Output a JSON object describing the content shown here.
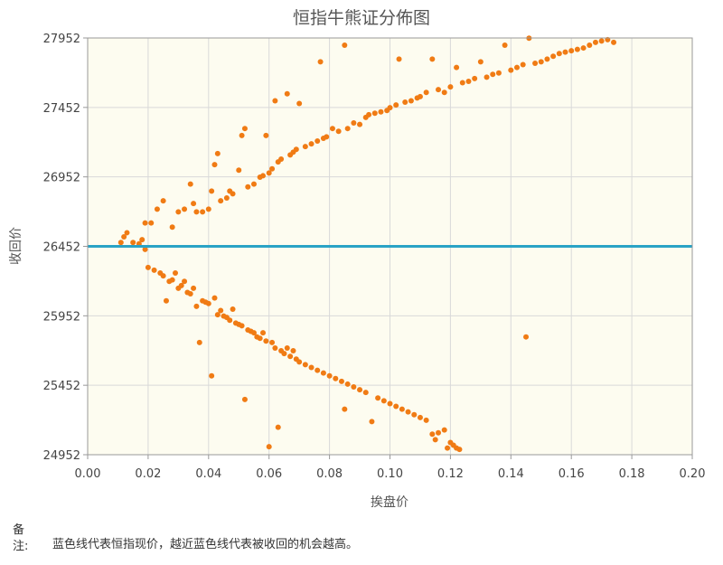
{
  "chart_data": {
    "type": "scatter",
    "title": "恒指牛熊证分佈图",
    "xlabel": "挨盘价",
    "ylabel": "收回价",
    "xlim": [
      0.0,
      0.2
    ],
    "ylim": [
      24952,
      27952
    ],
    "x_ticks": [
      "0.00",
      "0.02",
      "0.04",
      "0.06",
      "0.08",
      "0.10",
      "0.12",
      "0.14",
      "0.16",
      "0.18",
      "0.20"
    ],
    "y_ticks": [
      "24952",
      "25452",
      "25952",
      "26452",
      "26952",
      "27452",
      "27952"
    ],
    "grid": true,
    "reference_line": {
      "y": 26452,
      "color": "#2aa3c6"
    },
    "point_color": "#f07b14",
    "series": [
      {
        "values": [
          [
            0.011,
            26480
          ],
          [
            0.012,
            26520
          ],
          [
            0.013,
            26550
          ],
          [
            0.015,
            26480
          ],
          [
            0.017,
            26470
          ],
          [
            0.018,
            26500
          ],
          [
            0.019,
            26620
          ],
          [
            0.021,
            26620
          ],
          [
            0.023,
            26720
          ],
          [
            0.025,
            26780
          ],
          [
            0.028,
            26590
          ],
          [
            0.03,
            26700
          ],
          [
            0.032,
            26720
          ],
          [
            0.034,
            26900
          ],
          [
            0.035,
            26760
          ],
          [
            0.036,
            26700
          ],
          [
            0.038,
            26700
          ],
          [
            0.04,
            26720
          ],
          [
            0.041,
            26850
          ],
          [
            0.042,
            27040
          ],
          [
            0.043,
            27120
          ],
          [
            0.044,
            26780
          ],
          [
            0.046,
            26800
          ],
          [
            0.047,
            26850
          ],
          [
            0.048,
            26830
          ],
          [
            0.05,
            27000
          ],
          [
            0.051,
            27250
          ],
          [
            0.052,
            27300
          ],
          [
            0.053,
            26880
          ],
          [
            0.055,
            26900
          ],
          [
            0.057,
            26950
          ],
          [
            0.058,
            26960
          ],
          [
            0.059,
            27250
          ],
          [
            0.06,
            26980
          ],
          [
            0.061,
            27010
          ],
          [
            0.062,
            27500
          ],
          [
            0.063,
            27060
          ],
          [
            0.064,
            27080
          ],
          [
            0.066,
            27550
          ],
          [
            0.067,
            27110
          ],
          [
            0.068,
            27130
          ],
          [
            0.069,
            27150
          ],
          [
            0.07,
            27480
          ],
          [
            0.072,
            27170
          ],
          [
            0.074,
            27190
          ],
          [
            0.076,
            27210
          ],
          [
            0.077,
            27780
          ],
          [
            0.078,
            27230
          ],
          [
            0.079,
            27240
          ],
          [
            0.081,
            27300
          ],
          [
            0.083,
            27280
          ],
          [
            0.085,
            27900
          ],
          [
            0.086,
            27300
          ],
          [
            0.088,
            27340
          ],
          [
            0.09,
            27330
          ],
          [
            0.092,
            27380
          ],
          [
            0.093,
            27400
          ],
          [
            0.095,
            27410
          ],
          [
            0.097,
            27420
          ],
          [
            0.099,
            27430
          ],
          [
            0.1,
            27450
          ],
          [
            0.102,
            27470
          ],
          [
            0.103,
            27800
          ],
          [
            0.105,
            27490
          ],
          [
            0.107,
            27500
          ],
          [
            0.109,
            27520
          ],
          [
            0.11,
            27530
          ],
          [
            0.112,
            27560
          ],
          [
            0.114,
            27800
          ],
          [
            0.116,
            27580
          ],
          [
            0.118,
            27560
          ],
          [
            0.12,
            27600
          ],
          [
            0.122,
            27740
          ],
          [
            0.124,
            27630
          ],
          [
            0.126,
            27640
          ],
          [
            0.128,
            27660
          ],
          [
            0.13,
            27780
          ],
          [
            0.132,
            27670
          ],
          [
            0.134,
            27690
          ],
          [
            0.136,
            27700
          ],
          [
            0.138,
            27900
          ],
          [
            0.14,
            27720
          ],
          [
            0.142,
            27740
          ],
          [
            0.144,
            27760
          ],
          [
            0.146,
            27950
          ],
          [
            0.148,
            27770
          ],
          [
            0.15,
            27780
          ],
          [
            0.152,
            27800
          ],
          [
            0.154,
            27820
          ],
          [
            0.156,
            27840
          ],
          [
            0.158,
            27850
          ],
          [
            0.16,
            27860
          ],
          [
            0.162,
            27870
          ],
          [
            0.164,
            27880
          ],
          [
            0.166,
            27900
          ],
          [
            0.168,
            27920
          ],
          [
            0.17,
            27930
          ],
          [
            0.172,
            27940
          ],
          [
            0.174,
            27920
          ]
        ]
      },
      {
        "values": [
          [
            0.019,
            26430
          ],
          [
            0.02,
            26300
          ],
          [
            0.022,
            26280
          ],
          [
            0.024,
            26260
          ],
          [
            0.025,
            26240
          ],
          [
            0.026,
            26060
          ],
          [
            0.027,
            26200
          ],
          [
            0.028,
            26210
          ],
          [
            0.029,
            26260
          ],
          [
            0.03,
            26150
          ],
          [
            0.031,
            26170
          ],
          [
            0.032,
            26200
          ],
          [
            0.033,
            26120
          ],
          [
            0.034,
            26110
          ],
          [
            0.035,
            26150
          ],
          [
            0.036,
            26020
          ],
          [
            0.037,
            25760
          ],
          [
            0.038,
            26060
          ],
          [
            0.039,
            26050
          ],
          [
            0.04,
            26040
          ],
          [
            0.041,
            25520
          ],
          [
            0.042,
            26080
          ],
          [
            0.043,
            25960
          ],
          [
            0.044,
            25990
          ],
          [
            0.045,
            25950
          ],
          [
            0.046,
            25940
          ],
          [
            0.047,
            25920
          ],
          [
            0.048,
            26000
          ],
          [
            0.049,
            25900
          ],
          [
            0.05,
            25890
          ],
          [
            0.051,
            25880
          ],
          [
            0.052,
            25350
          ],
          [
            0.053,
            25850
          ],
          [
            0.054,
            25840
          ],
          [
            0.055,
            25830
          ],
          [
            0.056,
            25800
          ],
          [
            0.057,
            25790
          ],
          [
            0.058,
            25830
          ],
          [
            0.059,
            25770
          ],
          [
            0.06,
            25010
          ],
          [
            0.061,
            25760
          ],
          [
            0.062,
            25720
          ],
          [
            0.063,
            25150
          ],
          [
            0.064,
            25700
          ],
          [
            0.065,
            25680
          ],
          [
            0.066,
            25720
          ],
          [
            0.067,
            25660
          ],
          [
            0.068,
            25700
          ],
          [
            0.069,
            25640
          ],
          [
            0.07,
            25620
          ],
          [
            0.072,
            25600
          ],
          [
            0.074,
            25580
          ],
          [
            0.076,
            25560
          ],
          [
            0.078,
            25540
          ],
          [
            0.08,
            25520
          ],
          [
            0.082,
            25500
          ],
          [
            0.084,
            25480
          ],
          [
            0.085,
            25280
          ],
          [
            0.086,
            25460
          ],
          [
            0.088,
            25440
          ],
          [
            0.09,
            25420
          ],
          [
            0.092,
            25400
          ],
          [
            0.094,
            25190
          ],
          [
            0.096,
            25360
          ],
          [
            0.098,
            25340
          ],
          [
            0.1,
            25320
          ],
          [
            0.102,
            25300
          ],
          [
            0.104,
            25280
          ],
          [
            0.106,
            25260
          ],
          [
            0.108,
            25240
          ],
          [
            0.11,
            25220
          ],
          [
            0.112,
            25200
          ],
          [
            0.114,
            25100
          ],
          [
            0.115,
            25060
          ],
          [
            0.116,
            25110
          ],
          [
            0.118,
            25130
          ],
          [
            0.119,
            25000
          ],
          [
            0.12,
            25040
          ],
          [
            0.121,
            25020
          ],
          [
            0.122,
            25000
          ],
          [
            0.123,
            24990
          ],
          [
            0.145,
            25800
          ]
        ]
      }
    ]
  },
  "note": {
    "label": "备注:",
    "text": "蓝色线代表恒指现价，越近蓝色线代表被收回的机会越高。"
  }
}
